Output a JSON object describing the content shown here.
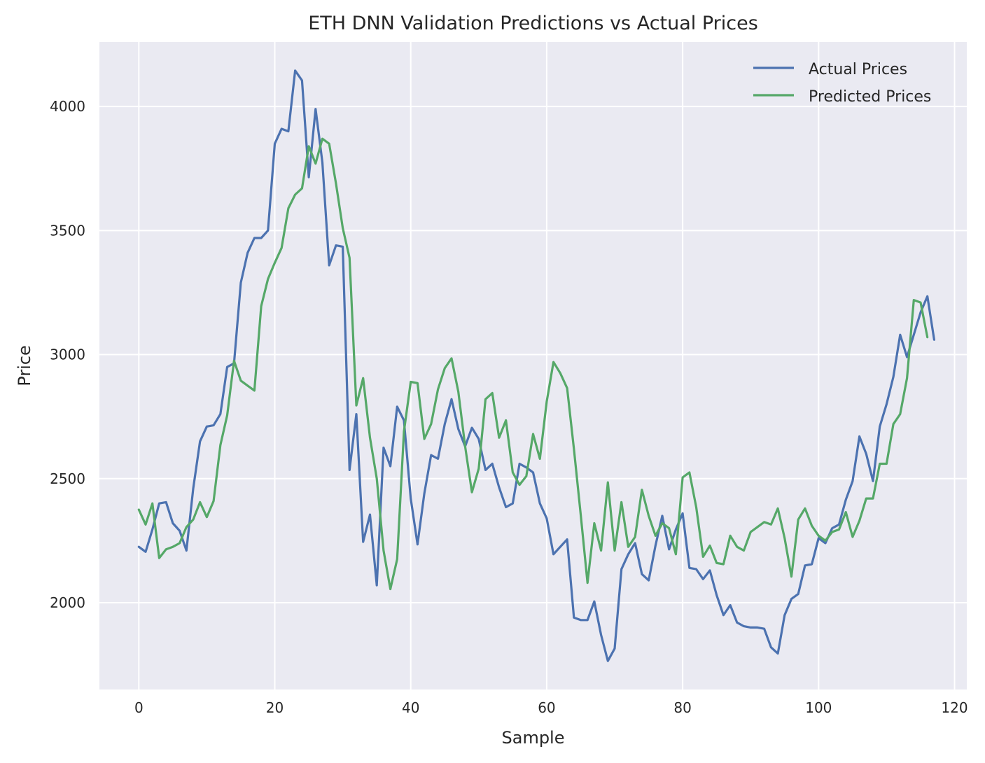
{
  "chart_data": {
    "type": "line",
    "title": "ETH DNN Validation Predictions vs Actual Prices",
    "xlabel": "Sample",
    "ylabel": "Price",
    "xlim": [
      -5.8,
      121.8
    ],
    "ylim": [
      1650,
      4260
    ],
    "xticks": [
      0,
      20,
      40,
      60,
      80,
      100,
      120
    ],
    "yticks": [
      2000,
      2500,
      3000,
      3500,
      4000
    ],
    "grid": true,
    "legend_position": "top-right",
    "background_color": "#eaeaf2",
    "series": [
      {
        "name": "Actual Prices",
        "color": "#4c72b0",
        "values": [
          2225,
          2205,
          2295,
          2400,
          2405,
          2320,
          2290,
          2210,
          2460,
          2650,
          2710,
          2715,
          2760,
          2950,
          2965,
          3290,
          3410,
          3470,
          3470,
          3500,
          3850,
          3910,
          3900,
          4145,
          4105,
          3715,
          3990,
          3775,
          3360,
          3440,
          3435,
          2535,
          2760,
          2245,
          2355,
          2070,
          2625,
          2550,
          2790,
          2735,
          2420,
          2235,
          2440,
          2595,
          2580,
          2720,
          2820,
          2700,
          2630,
          2705,
          2660,
          2535,
          2560,
          2465,
          2385,
          2400,
          2560,
          2545,
          2525,
          2400,
          2340,
          2195,
          2225,
          2255,
          1940,
          1930,
          1930,
          2005,
          1870,
          1765,
          1815,
          2135,
          2195,
          2240,
          2115,
          2090,
          2230,
          2350,
          2215,
          2295,
          2360,
          2140,
          2135,
          2095,
          2130,
          2030,
          1950,
          1990,
          1920,
          1905,
          1900,
          1900,
          1895,
          1820,
          1795,
          1950,
          2015,
          2035,
          2150,
          2155,
          2260,
          2240,
          2300,
          2315,
          2415,
          2490,
          2670,
          2600,
          2490,
          2710,
          2800,
          2910,
          3080,
          2990,
          3080,
          3170,
          3235,
          3060
        ]
      },
      {
        "name": "Predicted Prices",
        "color": "#55a868",
        "values": [
          2375,
          2315,
          2400,
          2180,
          2215,
          2225,
          2240,
          2305,
          2335,
          2405,
          2345,
          2410,
          2635,
          2755,
          2975,
          2895,
          2875,
          2855,
          3195,
          3305,
          3370,
          3430,
          3590,
          3645,
          3670,
          3840,
          3770,
          3870,
          3850,
          3690,
          3510,
          3390,
          2795,
          2905,
          2665,
          2500,
          2210,
          2055,
          2175,
          2690,
          2890,
          2885,
          2660,
          2720,
          2860,
          2945,
          2985,
          2850,
          2630,
          2445,
          2540,
          2820,
          2845,
          2665,
          2735,
          2525,
          2475,
          2510,
          2680,
          2580,
          2810,
          2970,
          2925,
          2865,
          2620,
          2355,
          2080,
          2320,
          2210,
          2485,
          2210,
          2405,
          2225,
          2265,
          2455,
          2350,
          2270,
          2320,
          2300,
          2195,
          2505,
          2525,
          2385,
          2185,
          2230,
          2160,
          2155,
          2270,
          2225,
          2210,
          2285,
          2305,
          2325,
          2315,
          2380,
          2260,
          2105,
          2335,
          2380,
          2310,
          2270,
          2250,
          2285,
          2295,
          2365,
          2265,
          2330,
          2420,
          2420,
          2560,
          2560,
          2720,
          2760,
          2905,
          3220,
          3210,
          3070
        ]
      }
    ]
  }
}
